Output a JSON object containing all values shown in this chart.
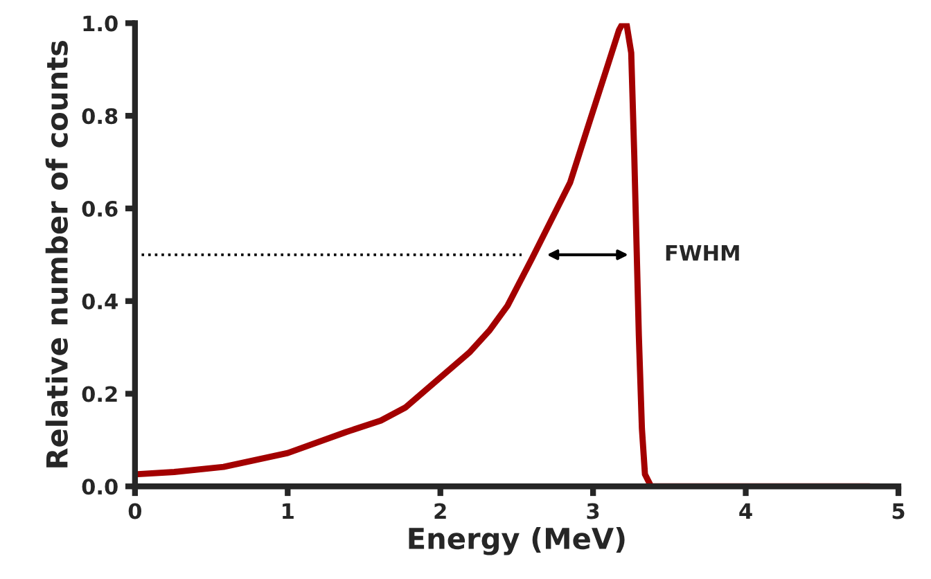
{
  "chart_data": {
    "type": "line",
    "xlabel": "Energy (MeV)",
    "ylabel": "Relative number of counts",
    "x": [
      0,
      0.257,
      0.58,
      1.0,
      1.38,
      1.61,
      1.77,
      2.19,
      2.32,
      2.44,
      2.6,
      2.85,
      2.97,
      3.1,
      3.17,
      3.19,
      3.22,
      3.25,
      3.27,
      3.3,
      3.32,
      3.34,
      3.38,
      4.81
    ],
    "series": [
      {
        "color": "#a30000",
        "values": [
          0.026,
          0.031,
          0.042,
          0.072,
          0.117,
          0.142,
          0.17,
          0.289,
          0.336,
          0.39,
          0.492,
          0.656,
          0.78,
          0.913,
          0.985,
          0.997,
          0.997,
          0.936,
          0.714,
          0.325,
          0.125,
          0.026,
          0,
          0
        ]
      }
    ],
    "xlim": [
      0,
      5
    ],
    "xticks": [
      0,
      1,
      2,
      3,
      4,
      5
    ],
    "ylim": [
      0,
      1
    ],
    "yticks": [
      {
        "value": 0,
        "label": "0.0"
      },
      {
        "value": 0.2,
        "label": "0.2"
      },
      {
        "value": 0.4,
        "label": "0.4"
      },
      {
        "value": 0.6,
        "label": "0.6"
      },
      {
        "value": 0.8,
        "label": "0.8"
      },
      {
        "value": 1,
        "label": "1.0"
      }
    ],
    "ref_lines": [
      {
        "axis": "y",
        "value": 0.5,
        "color": "#000000",
        "line_style": "dotted"
      }
    ],
    "annotations": [
      "FWHM"
    ],
    "grid": false,
    "marker": "none",
    "line_style": "solid"
  }
}
